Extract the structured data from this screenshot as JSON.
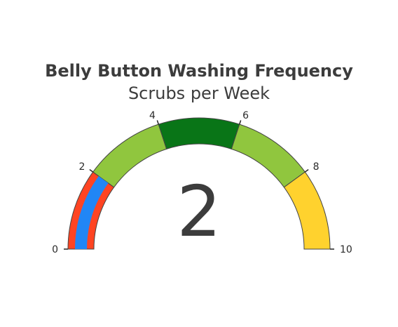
{
  "chart_data": {
    "type": "gauge",
    "title": "Belly Button Washing Frequency",
    "subtitle": "Scrubs per Week",
    "value": 2,
    "value_label": "2",
    "range": [
      0,
      10
    ],
    "ticks": [
      0,
      2,
      4,
      6,
      8,
      10
    ],
    "tick_labels": [
      "0",
      "2",
      "4",
      "6",
      "8",
      "10"
    ],
    "steps": [
      {
        "range": [
          0,
          2
        ],
        "color": "#FF4422"
      },
      {
        "range": [
          2,
          4
        ],
        "color": "#90C63E"
      },
      {
        "range": [
          4,
          6
        ],
        "color": "#097517"
      },
      {
        "range": [
          6,
          8
        ],
        "color": "#90C63E"
      },
      {
        "range": [
          8,
          10
        ],
        "color": "#FFD22E"
      }
    ],
    "bar": {
      "value": 2,
      "color": "#2186F5"
    }
  }
}
